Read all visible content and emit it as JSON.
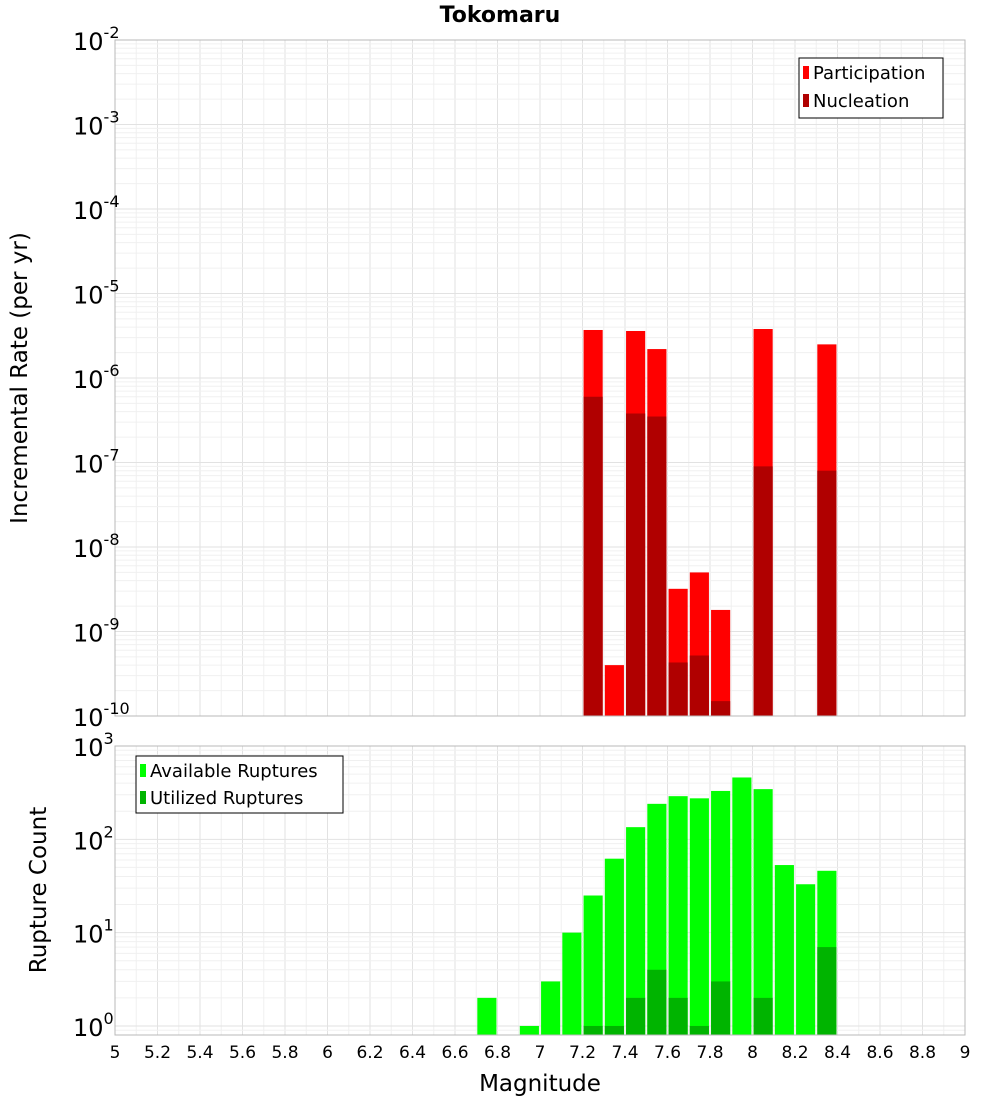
{
  "chart_data": [
    {
      "type": "bar",
      "title": "Tokomaru",
      "xlabel": "Magnitude",
      "ylabel": "Incremental Rate (per yr)",
      "y_scale": "log",
      "ylim": [
        1e-10,
        0.01
      ],
      "xlim": [
        5,
        9
      ],
      "grid": true,
      "legend_position": "top-right",
      "x_ticks": [
        "5",
        "5.2",
        "5.4",
        "5.6",
        "5.8",
        "6",
        "6.2",
        "6.4",
        "6.6",
        "6.8",
        "7",
        "7.2",
        "7.4",
        "7.6",
        "7.8",
        "8",
        "8.2",
        "8.4",
        "8.6",
        "8.8",
        "9"
      ],
      "y_ticks": [
        {
          "base": "10",
          "exp": "-2"
        },
        {
          "base": "10",
          "exp": "-3"
        },
        {
          "base": "10",
          "exp": "-4"
        },
        {
          "base": "10",
          "exp": "-5"
        },
        {
          "base": "10",
          "exp": "-6"
        },
        {
          "base": "10",
          "exp": "-7"
        },
        {
          "base": "10",
          "exp": "-8"
        },
        {
          "base": "10",
          "exp": "-9"
        },
        {
          "base": "10",
          "exp": "-10"
        }
      ],
      "series": [
        {
          "name": "Participation",
          "color": "#ff0000",
          "points": [
            {
              "x": 7.25,
              "y": 3.7e-06
            },
            {
              "x": 7.35,
              "y": 4e-10
            },
            {
              "x": 7.45,
              "y": 3.6e-06
            },
            {
              "x": 7.55,
              "y": 2.2e-06
            },
            {
              "x": 7.65,
              "y": 3.2e-09
            },
            {
              "x": 7.75,
              "y": 5e-09
            },
            {
              "x": 7.85,
              "y": 1.8e-09
            },
            {
              "x": 8.05,
              "y": 3.8e-06
            },
            {
              "x": 8.35,
              "y": 2.5e-06
            }
          ]
        },
        {
          "name": "Nucleation",
          "color": "#b00000",
          "points": [
            {
              "x": 7.25,
              "y": 6e-07
            },
            {
              "x": 7.45,
              "y": 3.8e-07
            },
            {
              "x": 7.55,
              "y": 3.5e-07
            },
            {
              "x": 7.65,
              "y": 4.3e-10
            },
            {
              "x": 7.75,
              "y": 5.2e-10
            },
            {
              "x": 7.85,
              "y": 1.5e-10
            },
            {
              "x": 8.05,
              "y": 9e-08
            },
            {
              "x": 8.35,
              "y": 8e-08
            }
          ]
        }
      ]
    },
    {
      "type": "bar",
      "xlabel": "Magnitude",
      "ylabel": "Rupture Count",
      "y_scale": "log",
      "ylim": [
        0.8,
        1000
      ],
      "xlim": [
        5,
        9
      ],
      "grid": true,
      "legend_position": "top-left",
      "y_ticks": [
        {
          "base": "10",
          "exp": "3"
        },
        {
          "base": "10",
          "exp": "2"
        },
        {
          "base": "10",
          "exp": "1"
        },
        {
          "base": "10",
          "exp": "0"
        }
      ],
      "series": [
        {
          "name": "Available Ruptures",
          "color": "#00ff00",
          "points": [
            {
              "x": 6.75,
              "y": 2
            },
            {
              "x": 6.95,
              "y": 1
            },
            {
              "x": 7.05,
              "y": 3
            },
            {
              "x": 7.15,
              "y": 10
            },
            {
              "x": 7.25,
              "y": 25
            },
            {
              "x": 7.35,
              "y": 62
            },
            {
              "x": 7.45,
              "y": 135
            },
            {
              "x": 7.55,
              "y": 240
            },
            {
              "x": 7.65,
              "y": 290
            },
            {
              "x": 7.75,
              "y": 275
            },
            {
              "x": 7.85,
              "y": 330
            },
            {
              "x": 7.95,
              "y": 460
            },
            {
              "x": 8.05,
              "y": 345
            },
            {
              "x": 8.15,
              "y": 53
            },
            {
              "x": 8.25,
              "y": 33
            },
            {
              "x": 8.35,
              "y": 46
            }
          ]
        },
        {
          "name": "Utilized Ruptures",
          "color": "#00b400",
          "points": [
            {
              "x": 7.25,
              "y": 1
            },
            {
              "x": 7.35,
              "y": 1
            },
            {
              "x": 7.45,
              "y": 2
            },
            {
              "x": 7.55,
              "y": 4
            },
            {
              "x": 7.65,
              "y": 2
            },
            {
              "x": 7.75,
              "y": 1
            },
            {
              "x": 7.85,
              "y": 3
            },
            {
              "x": 8.05,
              "y": 2
            },
            {
              "x": 8.35,
              "y": 7
            }
          ]
        }
      ]
    }
  ]
}
